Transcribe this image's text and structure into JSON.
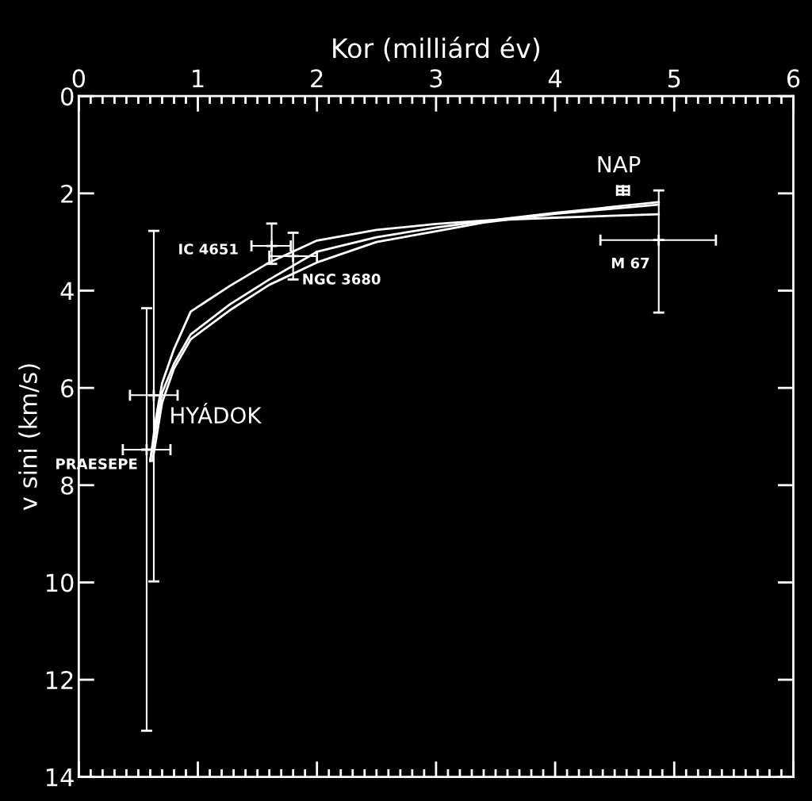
{
  "chart_data": {
    "type": "scatter",
    "xlabel": "Kor (milliárd év)",
    "ylabel": "v sini (km/s)",
    "xlim": [
      0,
      6
    ],
    "xticks": [
      0,
      1,
      2,
      3,
      4,
      5,
      6
    ],
    "ylim": [
      14,
      0
    ],
    "yticks": [
      0,
      2,
      4,
      6,
      8,
      10,
      12,
      14
    ],
    "grid": false,
    "legend": false,
    "marker": "none",
    "series": [
      {
        "color": "#ffffff",
        "marker": "cross",
        "x": [
          0.63,
          0.57,
          1.62,
          1.8,
          4.87,
          4.57
        ],
        "values": [
          6.15,
          7.27,
          3.08,
          3.29,
          2.96,
          1.94
        ],
        "errors": [
          [
            2.77,
            9.98
          ],
          [
            4.36,
            13.05
          ],
          [
            2.62,
            3.45
          ],
          [
            2.81,
            3.77
          ],
          [
            1.94,
            4.45
          ],
          [
            1.86,
            2.02
          ]
        ],
        "xerrors": [
          [
            0.43,
            0.83
          ],
          [
            0.37,
            0.77
          ],
          [
            1.45,
            1.78
          ],
          [
            1.6,
            2.0
          ],
          [
            4.38,
            5.35
          ],
          [
            4.52,
            4.62
          ]
        ]
      },
      {
        "type": "line",
        "color": "#ffffff",
        "x": [
          0.6,
          0.65,
          0.7,
          0.8,
          0.94,
          1.27,
          1.6,
          2.0,
          2.5,
          3.0,
          3.4,
          4.0,
          4.87
        ],
        "values": [
          7.5,
          6.6,
          5.9,
          5.2,
          4.43,
          3.9,
          3.42,
          2.97,
          2.75,
          2.63,
          2.56,
          2.5,
          2.43
        ]
      },
      {
        "type": "line",
        "color": "#ffffff",
        "x": [
          0.6,
          0.65,
          0.7,
          0.8,
          0.94,
          1.27,
          1.6,
          2.0,
          2.5,
          3.0,
          3.4,
          4.0,
          4.87
        ],
        "values": [
          7.5,
          6.8,
          6.1,
          5.5,
          4.9,
          4.28,
          3.77,
          3.2,
          2.9,
          2.7,
          2.57,
          2.4,
          2.18
        ]
      },
      {
        "type": "line",
        "color": "#ffffff",
        "x": [
          0.62,
          0.7,
          0.8,
          0.94,
          1.27,
          1.6,
          2.0,
          2.5,
          3.0,
          3.4,
          4.0,
          4.87
        ],
        "values": [
          7.5,
          6.3,
          5.6,
          5.0,
          4.4,
          3.88,
          3.42,
          3.0,
          2.78,
          2.6,
          2.42,
          2.23
        ]
      }
    ],
    "annotations": [
      {
        "text": "HYÁDOK",
        "x": 0.63,
        "y": 6.15
      },
      {
        "text": "PRAESEPE",
        "x": 0.57,
        "y": 7.27
      },
      {
        "text": "IC 4651",
        "x": 1.62,
        "y": 3.08
      },
      {
        "text": "NGC 3680",
        "x": 1.8,
        "y": 3.29
      },
      {
        "text": "M 67",
        "x": 4.87,
        "y": 2.96
      },
      {
        "text": "NAP",
        "x": 4.57,
        "y": 1.94
      }
    ]
  }
}
